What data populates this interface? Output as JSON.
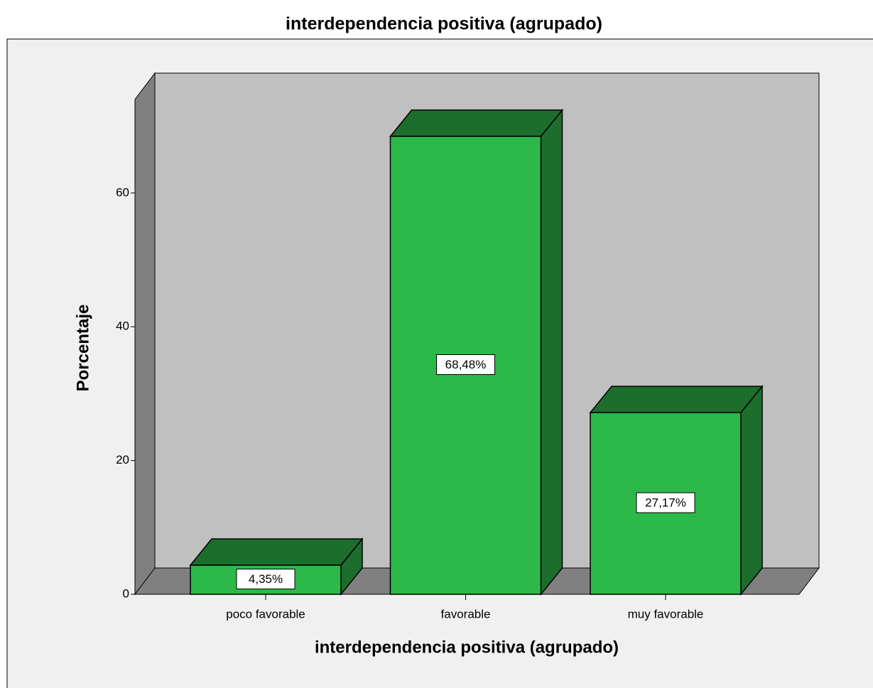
{
  "chart_data": {
    "type": "bar3d",
    "title": "interdependencia positiva (agrupado)",
    "x_label": "interdependencia positiva (agrupado)",
    "y_label": "Porcentaje",
    "categories": [
      "poco favorable",
      "favorable",
      "muy favorable"
    ],
    "values": [
      4.35,
      68.48,
      27.17
    ],
    "value_labels": [
      "4,35%",
      "68,48%",
      "27,17%"
    ],
    "color": "#2db84a",
    "ylim": [
      0,
      74
    ],
    "yticks": [
      0,
      20,
      40,
      60
    ],
    "grid": false
  }
}
